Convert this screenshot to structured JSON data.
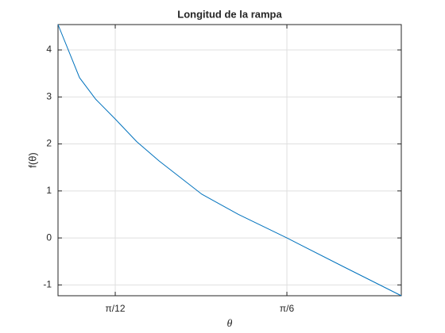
{
  "chart_data": {
    "type": "line",
    "title": "Longitud de la rampa",
    "x_label": "θ",
    "y_label": "f(θ)",
    "x": [
      0.1745,
      0.2073,
      0.2321,
      0.2618,
      0.2945,
      0.3285,
      0.3939,
      0.4497,
      0.5236,
      0.6096,
      0.6981
    ],
    "values": [
      4.54,
      3.41,
      2.95,
      2.53,
      2.05,
      1.64,
      0.93,
      0.5,
      0,
      -0.61,
      -1.23
    ],
    "color": "#0072bd",
    "xlim": [
      0.1745,
      0.6981
    ],
    "ylim": [
      -1.23,
      4.54
    ],
    "xticks": [
      {
        "value": 0.2618,
        "label": "π/12"
      },
      {
        "value": 0.5236,
        "label": "π/6"
      }
    ],
    "yticks": [
      -1,
      0,
      1,
      2,
      3,
      4
    ],
    "grid": true
  }
}
